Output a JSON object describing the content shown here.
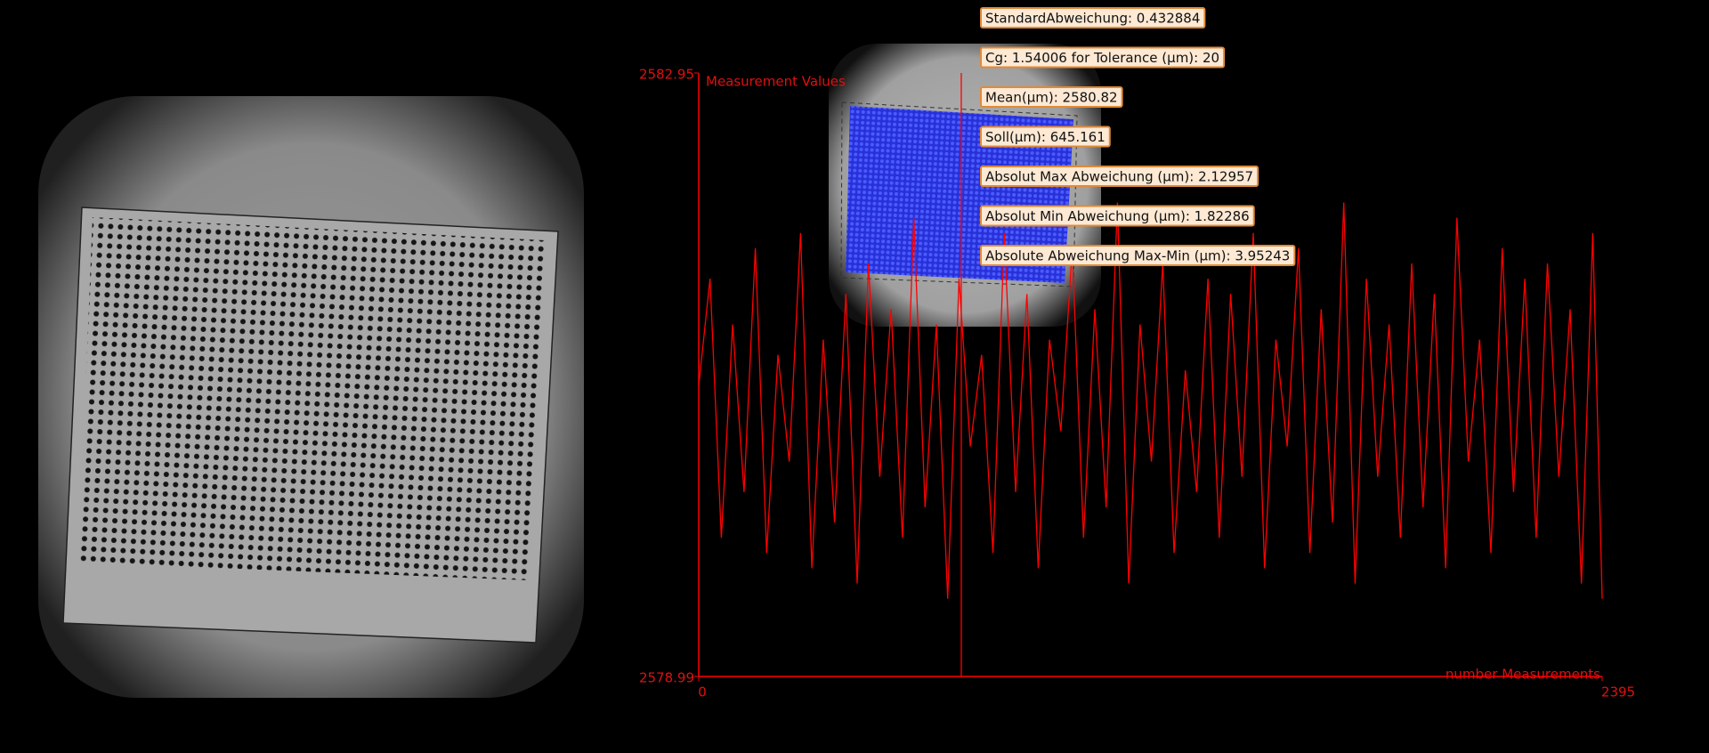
{
  "chart_data": {
    "type": "line",
    "y_label": "Measurement Values",
    "x_label": "number Measurements",
    "color": "#ff0000",
    "xlim": [
      0,
      2395
    ],
    "ylim": [
      2578.99,
      2582.95
    ],
    "xticks": [
      0,
      2395
    ],
    "yticks": [
      2578.99,
      2582.95
    ],
    "cursor_x": 696,
    "annotations": [
      "StandardAbweichung: 0.432884",
      "Cg: 1.54006 for Tolerance (µm): 20",
      "Mean(µm): 2580.82",
      "Soll(µm): 645.161",
      "Absolut Max Abweichung (µm): 2.12957",
      "Absolut Min Abweichung (µm): 1.82286",
      "Absolute Abweichung Max-Min (µm): 3.95243"
    ],
    "x": [
      0,
      30,
      60,
      90,
      120,
      150,
      180,
      210,
      240,
      270,
      300,
      330,
      360,
      390,
      420,
      450,
      480,
      510,
      540,
      570,
      600,
      630,
      660,
      690,
      720,
      750,
      780,
      810,
      840,
      870,
      900,
      930,
      960,
      990,
      1020,
      1050,
      1080,
      1110,
      1140,
      1170,
      1200,
      1230,
      1260,
      1290,
      1320,
      1350,
      1380,
      1410,
      1440,
      1470,
      1500,
      1530,
      1560,
      1590,
      1620,
      1650,
      1680,
      1710,
      1740,
      1770,
      1800,
      1830,
      1860,
      1890,
      1920,
      1950,
      1980,
      2010,
      2040,
      2070,
      2100,
      2130,
      2160,
      2190,
      2220,
      2250,
      2280,
      2310,
      2340,
      2370,
      2395
    ],
    "values": [
      2580.9,
      2581.6,
      2579.9,
      2581.3,
      2580.2,
      2581.8,
      2579.8,
      2581.1,
      2580.4,
      2581.9,
      2579.7,
      2581.2,
      2580.0,
      2581.5,
      2579.6,
      2581.7,
      2580.3,
      2581.4,
      2579.9,
      2582.0,
      2580.1,
      2581.3,
      2579.5,
      2581.6,
      2580.5,
      2581.1,
      2579.8,
      2581.9,
      2580.2,
      2581.5,
      2579.7,
      2581.2,
      2580.6,
      2581.8,
      2579.9,
      2581.4,
      2580.1,
      2582.1,
      2579.6,
      2581.3,
      2580.4,
      2581.7,
      2579.8,
      2581.0,
      2580.2,
      2581.6,
      2579.9,
      2581.5,
      2580.3,
      2581.9,
      2579.7,
      2581.2,
      2580.5,
      2581.8,
      2579.8,
      2581.4,
      2580.0,
      2582.1,
      2579.6,
      2581.6,
      2580.3,
      2581.3,
      2579.9,
      2581.7,
      2580.1,
      2581.5,
      2579.7,
      2582.0,
      2580.4,
      2581.2,
      2579.8,
      2581.8,
      2580.2,
      2581.6,
      2579.9,
      2581.7,
      2580.3,
      2581.4,
      2579.6,
      2581.9,
      2579.5
    ]
  }
}
